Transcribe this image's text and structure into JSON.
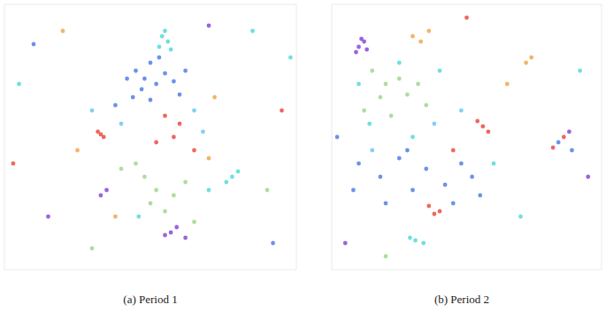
{
  "chart_data": [
    {
      "type": "scatter",
      "title": "(a) Period 1",
      "tick_labels": false,
      "xlim": [
        0,
        100
      ],
      "ylim": [
        0,
        100
      ],
      "x": [
        54,
        56,
        53,
        57,
        55,
        45,
        48,
        50,
        52,
        55,
        47,
        58,
        44,
        50,
        60,
        42,
        53,
        62,
        38,
        33,
        34,
        32,
        55,
        60,
        58,
        65,
        52,
        35,
        33,
        57,
        59,
        55,
        62,
        48,
        52,
        58,
        45,
        62,
        55,
        50,
        65,
        40,
        78,
        80,
        76,
        70,
        46,
        40,
        65,
        30,
        68,
        70,
        25,
        72,
        38,
        5,
        10,
        95,
        90,
        15,
        20,
        85,
        92,
        3,
        70,
        30,
        98
      ],
      "values": [
        88,
        86,
        84,
        83,
        90,
        75,
        72,
        78,
        70,
        74,
        68,
        71,
        65,
        64,
        66,
        72,
        80,
        75,
        62,
        51,
        50,
        52,
        58,
        55,
        50,
        45,
        48,
        30,
        28,
        14,
        16,
        13,
        12,
        35,
        30,
        28,
        40,
        33,
        22,
        25,
        18,
        38,
        35,
        37,
        33,
        30,
        20,
        55,
        60,
        60,
        52,
        42,
        45,
        65,
        20,
        70,
        85,
        60,
        30,
        20,
        90,
        90,
        10,
        40,
        92,
        8,
        80
      ],
      "colors": [
        "#3fd6d0",
        "#3fd6d0",
        "#3fd6d0",
        "#3fd6d0",
        "#3fd6d0",
        "#3b6fe0",
        "#3b6fe0",
        "#3b6fe0",
        "#3b6fe0",
        "#3b6fe0",
        "#3b6fe0",
        "#3b6fe0",
        "#3b6fe0",
        "#3b6fe0",
        "#3b6fe0",
        "#3b6fe0",
        "#3b6fe0",
        "#3b6fe0",
        "#3b6fe0",
        "#e8362a",
        "#e8362a",
        "#e8362a",
        "#e8362a",
        "#e8362a",
        "#e8362a",
        "#e8362a",
        "#e8362a",
        "#7a2fd6",
        "#7a2fd6",
        "#7a2fd6",
        "#7a2fd6",
        "#7a2fd6",
        "#7a2fd6",
        "#8fd67a",
        "#8fd67a",
        "#8fd67a",
        "#8fd67a",
        "#8fd67a",
        "#8fd67a",
        "#8fd67a",
        "#8fd67a",
        "#8fd67a",
        "#3fd6d0",
        "#3fd6d0",
        "#3fd6d0",
        "#3fd6d0",
        "#3fd6d0",
        "#5bc0f0",
        "#5bc0f0",
        "#5bc0f0",
        "#5bc0f0",
        "#f09a3a",
        "#f09a3a",
        "#f09a3a",
        "#f09a3a",
        "#3fd6d0",
        "#3b6fe0",
        "#e8362a",
        "#8fd67a",
        "#7a2fd6",
        "#f09a3a",
        "#3fd6d0",
        "#3b6fe0",
        "#e8362a",
        "#7a2fd6",
        "#8fd67a",
        "#3fd6d0"
      ]
    },
    {
      "type": "scatter",
      "title": "(b) Period 2",
      "tick_labels": false,
      "xlim": [
        0,
        100
      ],
      "ylim": [
        0,
        100
      ],
      "x": [
        10,
        12,
        9,
        13,
        11,
        88,
        30,
        33,
        36,
        74,
        72,
        15,
        20,
        25,
        18,
        28,
        12,
        22,
        32,
        35,
        10,
        14,
        25,
        40,
        30,
        31,
        29,
        34,
        60,
        56,
        58,
        54,
        45,
        38,
        40,
        36,
        86,
        82,
        10,
        18,
        25,
        30,
        35,
        42,
        48,
        52,
        20,
        8,
        45,
        55,
        28,
        84,
        89,
        38,
        48,
        15,
        2,
        70,
        95,
        50,
        20,
        65,
        5,
        92
      ],
      "values": [
        84,
        86,
        82,
        83,
        87,
        52,
        88,
        86,
        90,
        80,
        78,
        75,
        70,
        72,
        65,
        66,
        60,
        58,
        70,
        62,
        70,
        55,
        78,
        75,
        50,
        11,
        12,
        10,
        40,
        54,
        52,
        56,
        45,
        21,
        22,
        24,
        50,
        46,
        40,
        35,
        42,
        30,
        38,
        32,
        40,
        35,
        25,
        30,
        25,
        28,
        45,
        48,
        45,
        55,
        60,
        45,
        50,
        20,
        35,
        95,
        5,
        70,
        10,
        75
      ],
      "colors": [
        "#7a2fd6",
        "#7a2fd6",
        "#7a2fd6",
        "#7a2fd6",
        "#7a2fd6",
        "#7a2fd6",
        "#f09a3a",
        "#f09a3a",
        "#f09a3a",
        "#f09a3a",
        "#f09a3a",
        "#8fd67a",
        "#8fd67a",
        "#8fd67a",
        "#8fd67a",
        "#8fd67a",
        "#8fd67a",
        "#8fd67a",
        "#8fd67a",
        "#8fd67a",
        "#3fd6d0",
        "#3fd6d0",
        "#3fd6d0",
        "#3fd6d0",
        "#3fd6d0",
        "#3fd6d0",
        "#3fd6d0",
        "#3fd6d0",
        "#3fd6d0",
        "#e8362a",
        "#e8362a",
        "#e8362a",
        "#e8362a",
        "#e8362a",
        "#e8362a",
        "#e8362a",
        "#e8362a",
        "#e8362a",
        "#3b6fe0",
        "#3b6fe0",
        "#3b6fe0",
        "#3b6fe0",
        "#3b6fe0",
        "#3b6fe0",
        "#3b6fe0",
        "#3b6fe0",
        "#3b6fe0",
        "#3b6fe0",
        "#3b6fe0",
        "#3b6fe0",
        "#3b6fe0",
        "#3b6fe0",
        "#3b6fe0",
        "#5bc0f0",
        "#5bc0f0",
        "#5bc0f0",
        "#3b6fe0",
        "#3fd6d0",
        "#7a2fd6",
        "#e8362a",
        "#8fd67a",
        "#f09a3a",
        "#7a2fd6",
        "#3fd6d0"
      ]
    }
  ]
}
